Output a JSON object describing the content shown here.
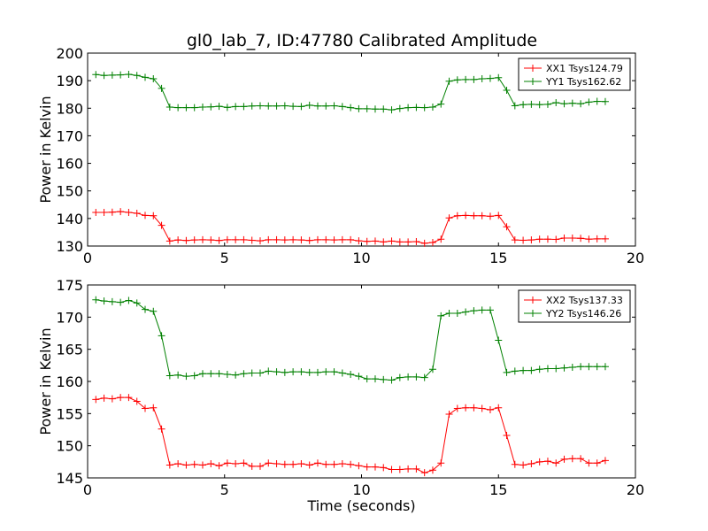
{
  "title": "gl0_lab_7, ID:47780 Calibrated Amplitude",
  "chart_data": [
    {
      "type": "line",
      "ylabel": "Power in Kelvin",
      "xlabel": "",
      "xlim": [
        0,
        20
      ],
      "ylim": [
        130,
        200
      ],
      "xticks": [
        0,
        5,
        10,
        15,
        20
      ],
      "yticks": [
        130,
        140,
        150,
        160,
        170,
        180,
        190,
        200
      ],
      "legend_position": "top-right",
      "grid": false,
      "x": [
        0.3,
        0.6,
        0.9,
        1.2,
        1.5,
        1.8,
        2.1,
        2.4,
        2.7,
        3.0,
        3.3,
        3.6,
        3.9,
        4.2,
        4.5,
        4.8,
        5.1,
        5.4,
        5.7,
        6.0,
        6.3,
        6.6,
        6.9,
        7.2,
        7.5,
        7.8,
        8.1,
        8.4,
        8.7,
        9.0,
        9.3,
        9.6,
        9.9,
        10.2,
        10.5,
        10.8,
        11.1,
        11.4,
        11.7,
        12.0,
        12.3,
        12.6,
        12.9,
        13.2,
        13.5,
        13.8,
        14.1,
        14.4,
        14.7,
        15.0,
        15.3,
        15.6,
        15.9,
        16.2,
        16.5,
        16.8,
        17.1,
        17.4,
        17.7,
        18.0,
        18.3,
        18.6,
        18.9
      ],
      "series": [
        {
          "name": "XX1 Tsys124.79",
          "color": "#ff0000",
          "values": [
            142.2,
            142.2,
            142.3,
            142.5,
            142.2,
            141.9,
            141.1,
            141.0,
            137.5,
            131.8,
            132.2,
            132.0,
            132.2,
            132.3,
            132.2,
            132.0,
            132.3,
            132.3,
            132.3,
            132.1,
            131.9,
            132.3,
            132.3,
            132.2,
            132.3,
            132.2,
            132.0,
            132.3,
            132.3,
            132.2,
            132.3,
            132.3,
            131.9,
            131.7,
            131.8,
            131.5,
            131.8,
            131.5,
            131.5,
            131.6,
            131.0,
            131.3,
            132.5,
            140.2,
            141.0,
            141.1,
            141.0,
            141.0,
            140.8,
            141.1,
            137.0,
            132.2,
            132.1,
            132.2,
            132.5,
            132.5,
            132.4,
            132.9,
            132.9,
            132.8,
            132.5,
            132.6,
            132.6
          ]
        },
        {
          "name": "YY1 Tsys162.62",
          "color": "#008000",
          "values": [
            192.2,
            191.9,
            192.0,
            192.1,
            192.3,
            191.9,
            191.2,
            190.7,
            187.2,
            180.4,
            180.2,
            180.2,
            180.2,
            180.4,
            180.5,
            180.7,
            180.3,
            180.6,
            180.6,
            180.8,
            180.9,
            180.8,
            180.8,
            180.9,
            180.7,
            180.6,
            181.1,
            180.8,
            180.8,
            180.9,
            180.6,
            180.2,
            179.8,
            179.8,
            179.7,
            179.7,
            179.4,
            179.9,
            180.2,
            180.3,
            180.2,
            180.4,
            181.5,
            189.8,
            190.3,
            190.4,
            190.4,
            190.7,
            190.8,
            191.1,
            186.5,
            180.9,
            181.3,
            181.4,
            181.3,
            181.4,
            182.0,
            181.6,
            181.8,
            181.6,
            182.2,
            182.5,
            182.4
          ]
        }
      ]
    },
    {
      "type": "line",
      "ylabel": "Power in Kelvin",
      "xlabel": "Time (seconds)",
      "xlim": [
        0,
        20
      ],
      "ylim": [
        145,
        175
      ],
      "xticks": [
        0,
        5,
        10,
        15,
        20
      ],
      "yticks": [
        145,
        150,
        155,
        160,
        165,
        170,
        175
      ],
      "legend_position": "top-right",
      "grid": false,
      "x": [
        0.3,
        0.6,
        0.9,
        1.2,
        1.5,
        1.8,
        2.1,
        2.4,
        2.7,
        3.0,
        3.3,
        3.6,
        3.9,
        4.2,
        4.5,
        4.8,
        5.1,
        5.4,
        5.7,
        6.0,
        6.3,
        6.6,
        6.9,
        7.2,
        7.5,
        7.8,
        8.1,
        8.4,
        8.7,
        9.0,
        9.3,
        9.6,
        9.9,
        10.2,
        10.5,
        10.8,
        11.1,
        11.4,
        11.7,
        12.0,
        12.3,
        12.6,
        12.9,
        13.2,
        13.5,
        13.8,
        14.1,
        14.4,
        14.7,
        15.0,
        15.3,
        15.6,
        15.9,
        16.2,
        16.5,
        16.8,
        17.1,
        17.4,
        17.7,
        18.0,
        18.3,
        18.6,
        18.9
      ],
      "series": [
        {
          "name": "XX2 Tsys137.33",
          "color": "#ff0000",
          "values": [
            157.2,
            157.4,
            157.3,
            157.5,
            157.5,
            156.9,
            155.8,
            155.9,
            152.6,
            147.0,
            147.2,
            147.0,
            147.1,
            147.0,
            147.2,
            146.9,
            147.3,
            147.2,
            147.3,
            146.8,
            146.8,
            147.3,
            147.2,
            147.1,
            147.1,
            147.2,
            147.0,
            147.3,
            147.1,
            147.1,
            147.2,
            147.1,
            146.9,
            146.7,
            146.7,
            146.6,
            146.3,
            146.3,
            146.4,
            146.4,
            145.8,
            146.2,
            147.3,
            154.9,
            155.8,
            155.9,
            155.9,
            155.8,
            155.6,
            155.9,
            151.6,
            147.1,
            147.0,
            147.2,
            147.5,
            147.6,
            147.3,
            147.9,
            148.0,
            148.0,
            147.3,
            147.3,
            147.7
          ]
        },
        {
          "name": "YY2 Tsys146.26",
          "color": "#008000",
          "values": [
            172.7,
            172.5,
            172.4,
            172.3,
            172.6,
            172.2,
            171.2,
            170.9,
            167.1,
            160.9,
            161.0,
            160.8,
            160.9,
            161.2,
            161.2,
            161.2,
            161.1,
            161.0,
            161.2,
            161.3,
            161.3,
            161.6,
            161.5,
            161.4,
            161.5,
            161.5,
            161.4,
            161.4,
            161.5,
            161.5,
            161.3,
            161.1,
            160.8,
            160.4,
            160.4,
            160.3,
            160.2,
            160.6,
            160.7,
            160.7,
            160.6,
            161.9,
            170.2,
            170.6,
            170.6,
            170.8,
            171.0,
            171.1,
            171.1,
            166.4,
            161.4,
            161.6,
            161.7,
            161.7,
            161.9,
            162.0,
            162.0,
            162.1,
            162.2,
            162.3,
            162.3,
            162.3,
            162.3
          ]
        }
      ]
    }
  ]
}
